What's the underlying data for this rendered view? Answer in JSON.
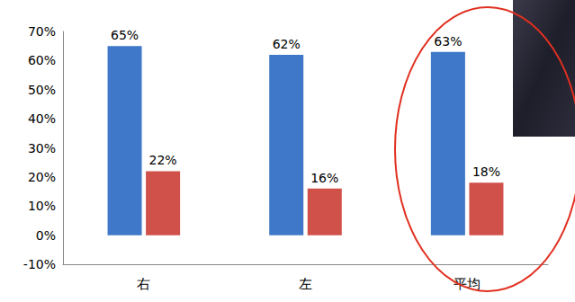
{
  "chart_data": {
    "type": "bar",
    "categories": [
      "右",
      "左",
      "平均"
    ],
    "series": [
      {
        "color": "#3f78c8",
        "values": [
          65,
          62,
          63
        ],
        "value_labels": [
          "65%",
          "62%",
          "63%"
        ]
      },
      {
        "color": "#d0504a",
        "values": [
          22,
          16,
          18
        ],
        "value_labels": [
          "22%",
          "16%",
          "18%"
        ]
      }
    ],
    "ylim": [
      -10,
      70
    ],
    "yticks": [
      {
        "value": -10,
        "label": "-10%"
      },
      {
        "value": 0,
        "label": "0%"
      },
      {
        "value": 10,
        "label": "10%"
      },
      {
        "value": 20,
        "label": "20%"
      },
      {
        "value": 30,
        "label": "30%"
      },
      {
        "value": 40,
        "label": "40%"
      },
      {
        "value": 50,
        "label": "50%"
      },
      {
        "value": 60,
        "label": "60%"
      },
      {
        "value": 70,
        "label": "70%"
      }
    ],
    "grid": false,
    "data_labels": true
  }
}
